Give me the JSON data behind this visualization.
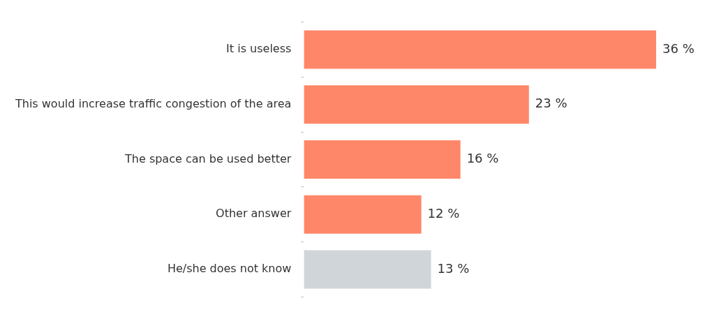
{
  "chart_data": {
    "type": "bar",
    "orientation": "horizontal",
    "categories": [
      "It is useless",
      "This would increase traffic congestion of the area",
      "The space can be used better",
      "Other answer",
      "He/she does not know"
    ],
    "values": [
      36,
      23,
      16,
      12,
      13
    ],
    "colors": [
      "#ff8769",
      "#ff8769",
      "#ff8769",
      "#ff8769",
      "#d0d5d9"
    ],
    "value_labels": [
      "36 %",
      "23 %",
      "16 %",
      "12 %",
      "13 %"
    ],
    "xlim": [
      0,
      36
    ],
    "tick_labels": "y",
    "legend": false
  }
}
